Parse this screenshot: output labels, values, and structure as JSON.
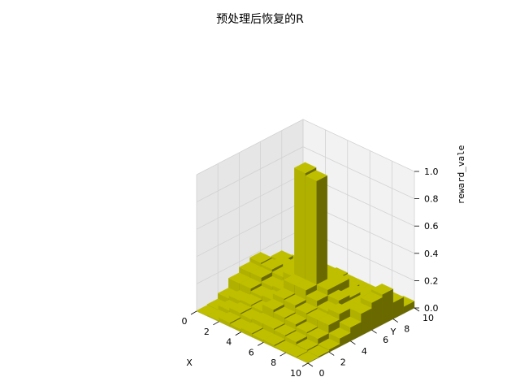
{
  "chart_data": {
    "type": "bar3d",
    "title": "预处理后恢复的R",
    "xlabel": "X",
    "ylabel": "Y",
    "zlabel": "reward_vale",
    "xlim": [
      0,
      10
    ],
    "ylim": [
      0,
      10
    ],
    "zlim": [
      0,
      1
    ],
    "x_ticks": [
      "0",
      "2",
      "4",
      "6",
      "8",
      "10"
    ],
    "y_ticks": [
      "0",
      "2",
      "4",
      "6",
      "8",
      "10"
    ],
    "z_ticks": [
      "0.0",
      "0.2",
      "0.4",
      "0.6",
      "0.8",
      "1.0"
    ],
    "bar_color": "#bfbf00",
    "grid": true,
    "values": [
      [
        0.0,
        0.01,
        0.05,
        0.12,
        0.16,
        0.19,
        0.1,
        0.12,
        0.05,
        0.02
      ],
      [
        0.01,
        0.04,
        0.07,
        0.12,
        0.16,
        0.18,
        0.16,
        0.1,
        0.05,
        0.02
      ],
      [
        0.03,
        0.06,
        0.08,
        0.1,
        0.13,
        0.16,
        0.16,
        0.12,
        0.08,
        0.02
      ],
      [
        0.02,
        0.05,
        0.07,
        0.11,
        0.14,
        0.2,
        0.18,
        0.15,
        0.07,
        0.03
      ],
      [
        0.03,
        0.06,
        0.12,
        0.16,
        0.22,
        1.0,
        0.18,
        0.14,
        0.07,
        0.02
      ],
      [
        0.02,
        0.06,
        0.1,
        0.15,
        0.22,
        0.98,
        0.2,
        0.14,
        0.06,
        0.02
      ],
      [
        0.02,
        0.05,
        0.09,
        0.13,
        0.18,
        0.22,
        0.22,
        0.12,
        0.05,
        0.02
      ],
      [
        0.01,
        0.04,
        0.07,
        0.12,
        0.14,
        0.18,
        0.16,
        0.12,
        0.05,
        0.01
      ],
      [
        0.01,
        0.02,
        0.06,
        0.12,
        0.16,
        0.14,
        0.14,
        0.1,
        0.04,
        0.01
      ],
      [
        0.0,
        0.01,
        0.02,
        0.06,
        0.1,
        0.16,
        0.2,
        0.22,
        0.12,
        0.05
      ]
    ]
  }
}
